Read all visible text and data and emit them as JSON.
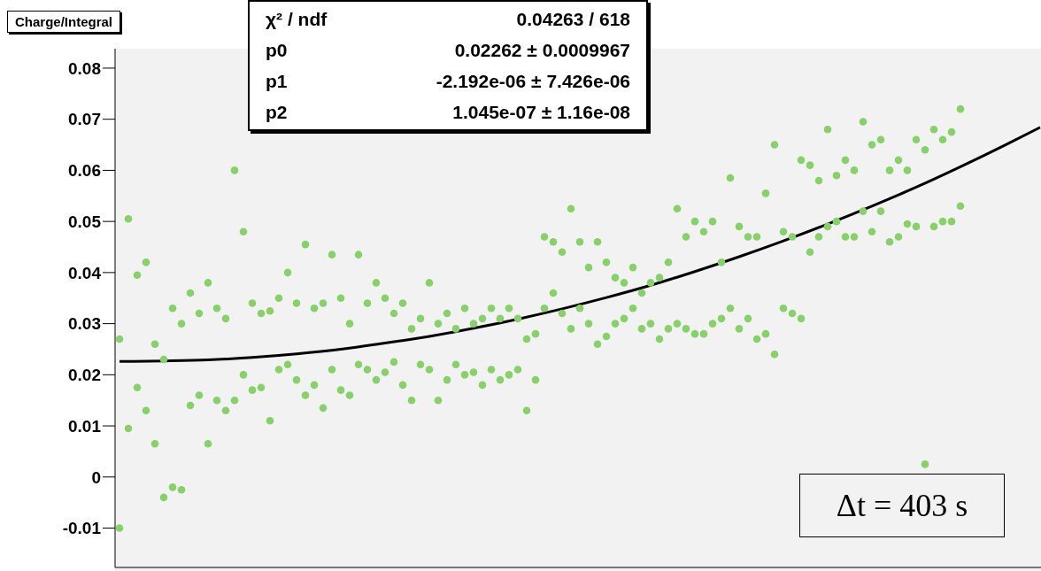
{
  "chart_data": {
    "type": "scatter",
    "title": "Charge/Integral",
    "categories": [
      null,
      null,
      null,
      null,
      null,
      null,
      null,
      null,
      null,
      null,
      null,
      null,
      null,
      null,
      null,
      null,
      null,
      null,
      null,
      null,
      null,
      null,
      null,
      null,
      null,
      null,
      null,
      null,
      null,
      null,
      null,
      null,
      null,
      null,
      null,
      null,
      null,
      null,
      null,
      null,
      null,
      null,
      null,
      null,
      null,
      null,
      null,
      null,
      null,
      null,
      null,
      null,
      null,
      null,
      null,
      null,
      null,
      null,
      null,
      null,
      null,
      null,
      null,
      null,
      null,
      null,
      null,
      null,
      null,
      null,
      null,
      null,
      null,
      null,
      null,
      null,
      null,
      null,
      null,
      null,
      null,
      null,
      null,
      null,
      null,
      null,
      null,
      null,
      null,
      null,
      null,
      null,
      null,
      null,
      null,
      null,
      null,
      null,
      null,
      null,
      null,
      null,
      null,
      null,
      null
    ],
    "series": [
      {
        "marker": "circle",
        "color": "#88d06a",
        "values": [
          0.027,
          0.0505,
          0.0395,
          0.042,
          0.026,
          0.023,
          0.033,
          0.03,
          0.036,
          0.032,
          0.038,
          0.033,
          0.031,
          0.06,
          0.048,
          0.034,
          0.032,
          0.0325,
          0.035,
          0.04,
          0.034,
          0.0455,
          0.033,
          0.034,
          0.0435,
          0.035,
          0.03,
          0.0435,
          0.034,
          0.038,
          0.035,
          0.032,
          0.034,
          0.029,
          0.031,
          0.038,
          0.03,
          0.032,
          0.029,
          0.033,
          0.03,
          0.031,
          0.033,
          0.031,
          0.033,
          0.031,
          0.027,
          0.028,
          0.047,
          0.046,
          0.044,
          0.0525,
          0.046,
          0.041,
          0.046,
          0.042,
          0.039,
          0.038,
          0.041,
          0.036,
          0.038,
          0.039,
          0.042,
          0.0525,
          0.047,
          0.05,
          0.048,
          0.05,
          0.042,
          0.0585,
          0.049,
          0.047,
          0.047,
          0.0555,
          0.065,
          0.048,
          0.047,
          0.062,
          0.061,
          0.058,
          0.068,
          0.059,
          0.062,
          0.06,
          0.0695,
          0.065,
          0.066,
          0.06,
          0.062,
          0.06,
          0.066,
          0.064,
          0.068,
          0.066,
          0.0675,
          0.072,
          null,
          null,
          null,
          null,
          null,
          null,
          null,
          null,
          null
        ]
      },
      {
        "marker": "circle",
        "color": "#88d06a",
        "values": [
          -0.01,
          0.0095,
          0.0175,
          0.013,
          0.0065,
          -0.004,
          -0.002,
          -0.0025,
          0.014,
          0.016,
          0.0065,
          0.015,
          0.013,
          0.015,
          0.02,
          0.017,
          0.0175,
          0.011,
          0.021,
          0.022,
          0.019,
          0.016,
          0.018,
          0.0135,
          0.021,
          0.017,
          0.016,
          0.022,
          0.021,
          0.019,
          0.0205,
          0.0225,
          0.018,
          0.015,
          0.022,
          0.021,
          0.015,
          0.019,
          0.022,
          0.02,
          0.0205,
          0.018,
          0.021,
          0.019,
          0.02,
          0.021,
          0.013,
          0.019,
          0.033,
          0.036,
          0.032,
          0.029,
          0.033,
          0.03,
          0.026,
          0.0275,
          0.03,
          0.031,
          0.033,
          0.029,
          0.03,
          0.027,
          0.029,
          0.03,
          0.029,
          0.028,
          0.028,
          0.03,
          0.031,
          0.033,
          0.029,
          0.031,
          0.027,
          0.028,
          0.024,
          0.033,
          0.032,
          0.031,
          0.044,
          0.047,
          0.049,
          0.05,
          0.047,
          0.047,
          0.052,
          0.048,
          0.052,
          0.046,
          0.047,
          0.0495,
          0.049,
          0.0025,
          0.049,
          0.05,
          0.05,
          0.053,
          null,
          null,
          null,
          null,
          null,
          null,
          null,
          null,
          null
        ]
      },
      {
        "type": "line",
        "marker": "none",
        "color": "#000000",
        "values": [
          0.0226,
          null,
          null,
          null,
          null,
          0.0227,
          null,
          null,
          null,
          null,
          0.0229,
          null,
          null,
          null,
          null,
          0.0234,
          null,
          null,
          null,
          null,
          0.0241,
          null,
          null,
          null,
          null,
          0.025,
          null,
          null,
          null,
          null,
          0.0262,
          null,
          null,
          null,
          null,
          0.0275,
          null,
          null,
          null,
          null,
          0.0291,
          null,
          null,
          null,
          null,
          0.0309,
          null,
          null,
          null,
          null,
          0.0329,
          null,
          null,
          null,
          null,
          0.0351,
          null,
          null,
          null,
          null,
          0.0375,
          null,
          null,
          null,
          null,
          0.0402,
          null,
          null,
          null,
          null,
          0.0431,
          null,
          null,
          null,
          null,
          0.0462,
          null,
          null,
          null,
          null,
          0.0495,
          null,
          null,
          null,
          null,
          0.053,
          null,
          null,
          null,
          null,
          0.0567,
          null,
          null,
          null,
          null,
          0.0607,
          null,
          null,
          null,
          null,
          0.0649,
          null,
          null,
          null,
          0.0684
        ]
      }
    ],
    "ylim": [
      -0.0177,
      0.0838
    ],
    "yticks": [
      -0.01,
      0,
      0.01,
      0.02,
      0.03,
      0.04,
      0.05,
      0.06,
      0.07,
      0.08
    ],
    "tick_labels": "y",
    "grid": false,
    "legend": false,
    "annotations": [
      "χ² / ndf",
      "0.04263 / 618",
      "p0",
      "0.02262 ± 0.0009967",
      "p1",
      "-2.192e-06 ± 7.426e-06",
      "p2",
      "1.045e-07 ± 1.16e-08",
      "Δt = 403 s"
    ]
  }
}
